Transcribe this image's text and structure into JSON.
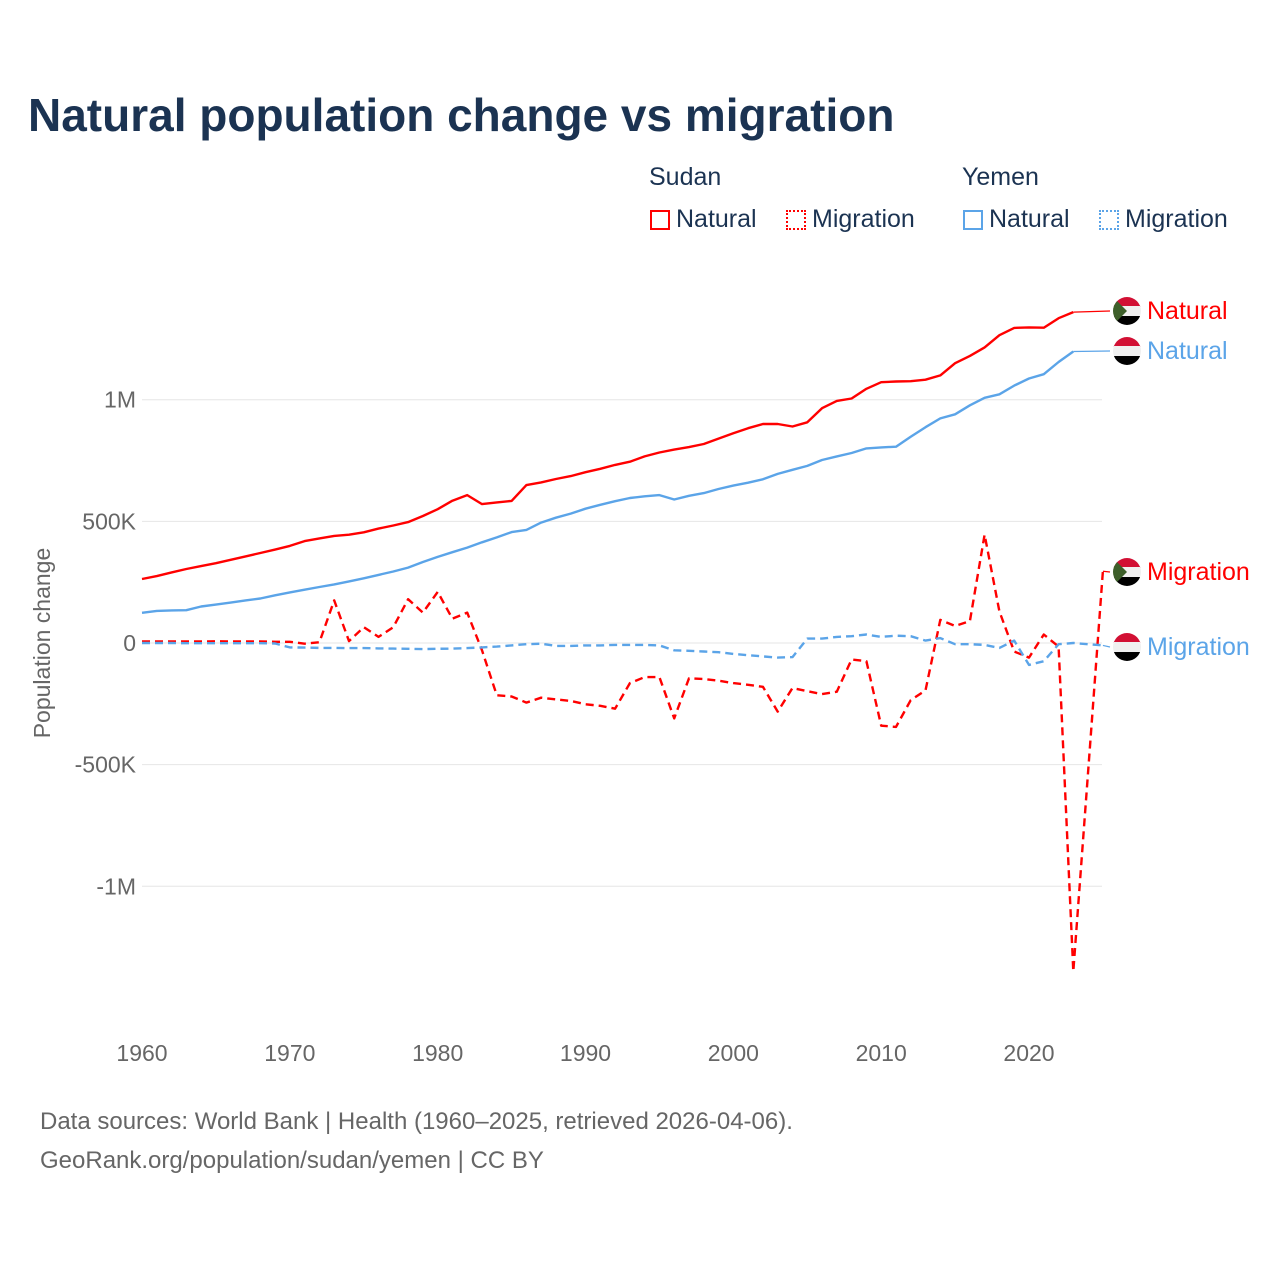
{
  "title": "Natural population change vs migration",
  "legend": {
    "groups": [
      {
        "name": "Sudan",
        "items": [
          {
            "label": "Natural",
            "style": "solid",
            "color": "#ff0000"
          },
          {
            "label": "Migration",
            "style": "dotted",
            "color": "#ff0000"
          }
        ]
      },
      {
        "name": "Yemen",
        "items": [
          {
            "label": "Natural",
            "style": "solid",
            "color": "#5ba4e8"
          },
          {
            "label": "Migration",
            "style": "dotted",
            "color": "#5ba4e8"
          }
        ]
      }
    ]
  },
  "footer": {
    "line1": "Data sources: World Bank | Health (1960–2025, retrieved 2026-04-06).",
    "line2": "GeoRank.org/population/sudan/yemen | CC BY"
  },
  "chart_data": {
    "type": "line",
    "title": "Natural population change vs migration",
    "ylabel": "Population change",
    "xlabel": "",
    "xlim": [
      1960,
      2025
    ],
    "ylim": [
      -1500000,
      1500000
    ],
    "x_ticks": [
      1960,
      1970,
      1980,
      1990,
      2000,
      2010,
      2020
    ],
    "x_tick_labels": [
      "1960",
      "1970",
      "1980",
      "1990",
      "2000",
      "2010",
      "2020"
    ],
    "y_ticks": [
      1000000,
      500000,
      0,
      -500000,
      -1000000
    ],
    "y_tick_labels": [
      "1M",
      "500K",
      "0",
      "-500K",
      "-1M"
    ],
    "grid": true,
    "x_start": 1960,
    "series": [
      {
        "name": "Sudan Natural",
        "label": "Natural",
        "color": "#ff0000",
        "dash": false,
        "flag": "sudan",
        "values": [
          263000,
          275000,
          290000,
          304000,
          316000,
          328000,
          342000,
          356000,
          370000,
          384000,
          399000,
          419000,
          430000,
          440000,
          445000,
          455000,
          470000,
          483000,
          497000,
          522000,
          550000,
          585000,
          608000,
          571000,
          578000,
          584000,
          649000,
          660000,
          674000,
          686000,
          702000,
          716000,
          732000,
          745000,
          767000,
          783000,
          795000,
          805000,
          818000,
          840000,
          862000,
          883000,
          900000,
          900000,
          890000,
          907000,
          965000,
          995000,
          1005000,
          1045000,
          1072000,
          1075000,
          1076000,
          1082000,
          1100000,
          1150000,
          1180000,
          1215000,
          1265000,
          1295000,
          1297000,
          1296000,
          1335000,
          1360000
        ]
      },
      {
        "name": "Yemen Natural",
        "label": "Natural",
        "color": "#5ba4e8",
        "dash": false,
        "flag": "yemen",
        "values": [
          124000,
          132000,
          134000,
          135000,
          150000,
          158000,
          166000,
          175000,
          183000,
          196000,
          208000,
          219000,
          230000,
          241000,
          253000,
          266000,
          280000,
          294000,
          310000,
          333000,
          354000,
          373000,
          392000,
          414000,
          434000,
          456000,
          465000,
          495000,
          515000,
          532000,
          552000,
          568000,
          583000,
          596000,
          603000,
          608000,
          590000,
          605000,
          616000,
          633000,
          647000,
          659000,
          673000,
          695000,
          712000,
          728000,
          752000,
          767000,
          781000,
          800000,
          804000,
          807000,
          848000,
          887000,
          923000,
          940000,
          977000,
          1008000,
          1022000,
          1058000,
          1087000,
          1105000,
          1155000,
          1198000
        ]
      },
      {
        "name": "Sudan Migration",
        "label": "Migration",
        "color": "#ff0000",
        "dash": true,
        "flag": "sudan",
        "values": [
          6000,
          6000,
          6000,
          6000,
          6000,
          7000,
          6000,
          6000,
          6000,
          5000,
          5000,
          -3000,
          3000,
          175000,
          8000,
          65000,
          25000,
          65000,
          180000,
          125000,
          210000,
          100000,
          125000,
          -30000,
          -215000,
          -220000,
          -245000,
          -225000,
          -232000,
          -238000,
          -252000,
          -258000,
          -270000,
          -165000,
          -140000,
          -140000,
          -310000,
          -145000,
          -148000,
          -155000,
          -165000,
          -172000,
          -180000,
          -282000,
          -185000,
          -198000,
          -210000,
          -200000,
          -68000,
          -75000,
          -340000,
          -345000,
          -235000,
          -195000,
          95000,
          70000,
          90000,
          445000,
          130000,
          -35000,
          -60000,
          35000,
          -15000,
          -1350000,
          -530000,
          295000
        ]
      },
      {
        "name": "Yemen Migration",
        "label": "Migration",
        "color": "#5ba4e8",
        "dash": true,
        "flag": "yemen",
        "values": [
          0,
          0,
          0,
          -1000,
          -1000,
          -1000,
          -1000,
          -1000,
          -1000,
          -2000,
          -18000,
          -19000,
          -20000,
          -20000,
          -21000,
          -21000,
          -22000,
          -23000,
          -24000,
          -25000,
          -24000,
          -23000,
          -21000,
          -18000,
          -15000,
          -10000,
          -5000,
          -3000,
          -12000,
          -12000,
          -10000,
          -10000,
          -8000,
          -8000,
          -8000,
          -10000,
          -30000,
          -32000,
          -35000,
          -38000,
          -45000,
          -50000,
          -55000,
          -60000,
          -58000,
          18000,
          18000,
          25000,
          28000,
          35000,
          25000,
          30000,
          28000,
          10000,
          20000,
          -5000,
          -5000,
          -8000,
          -20000,
          10000,
          -90000,
          -75000,
          -5000,
          0,
          -5000,
          -10000
        ]
      }
    ]
  }
}
